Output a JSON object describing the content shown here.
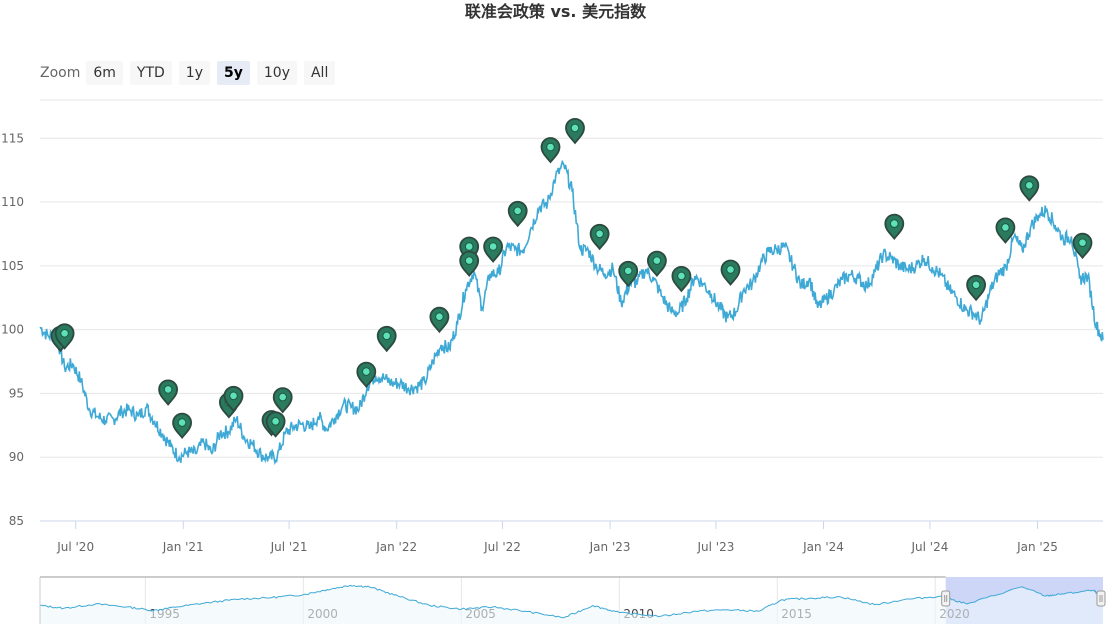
{
  "page_title": "联准会政策 vs. 美元指数",
  "zoom": {
    "label": "Zoom",
    "buttons": [
      {
        "label": "6m",
        "active": false
      },
      {
        "label": "YTD",
        "active": false
      },
      {
        "label": "1y",
        "active": false
      },
      {
        "label": "5y",
        "active": true
      },
      {
        "label": "10y",
        "active": false
      },
      {
        "label": "All",
        "active": false
      }
    ]
  },
  "colors": {
    "line": "#3fa9d6",
    "marker_fill": "#2a7a5e",
    "marker_stroke": "#2d4a40",
    "marker_dot": "#5ee0b8",
    "navigator_mask": "#c9d2f7",
    "navigator_area": "#eef7fb",
    "grid": "#e6e6e6"
  },
  "chart_data": {
    "type": "line",
    "title": "联准会政策 vs. 美元指数",
    "x_range": [
      "2020-05-01",
      "2025-04-23"
    ],
    "ylim": [
      85,
      118
    ],
    "y_ticks": [
      85,
      90,
      95,
      100,
      105,
      110,
      115
    ],
    "x_ticks": [
      {
        "date": "2020-07-01",
        "label": "Jul '20"
      },
      {
        "date": "2021-01-01",
        "label": "Jan '21"
      },
      {
        "date": "2021-07-01",
        "label": "Jul '21"
      },
      {
        "date": "2022-01-01",
        "label": "Jan '22"
      },
      {
        "date": "2022-07-01",
        "label": "Jul '22"
      },
      {
        "date": "2023-01-01",
        "label": "Jan '23"
      },
      {
        "date": "2023-07-01",
        "label": "Jul '23"
      },
      {
        "date": "2024-01-01",
        "label": "Jan '24"
      },
      {
        "date": "2024-07-01",
        "label": "Jul '24"
      },
      {
        "date": "2025-01-01",
        "label": "Jan '25"
      }
    ],
    "series": [
      {
        "x": [
          "2020-05-01",
          "2020-05-15",
          "2020-05-29",
          "2020-06-12",
          "2020-06-26",
          "2020-07-10",
          "2020-07-24",
          "2020-08-07",
          "2020-08-21",
          "2020-09-04",
          "2020-09-18",
          "2020-10-02",
          "2020-10-16",
          "2020-10-30",
          "2020-11-13",
          "2020-11-27",
          "2020-12-11",
          "2020-12-25",
          "2021-01-08",
          "2021-01-22",
          "2021-02-05",
          "2021-02-19",
          "2021-03-05",
          "2021-03-19",
          "2021-04-02",
          "2021-04-16",
          "2021-04-30",
          "2021-05-14",
          "2021-05-28",
          "2021-06-11",
          "2021-06-25",
          "2021-07-09",
          "2021-07-23",
          "2021-08-06",
          "2021-08-20",
          "2021-09-03",
          "2021-09-17",
          "2021-10-01",
          "2021-10-15",
          "2021-10-29",
          "2021-11-12",
          "2021-11-26",
          "2021-12-10",
          "2021-12-24",
          "2022-01-07",
          "2022-01-21",
          "2022-02-04",
          "2022-02-18",
          "2022-03-04",
          "2022-03-18",
          "2022-04-01",
          "2022-04-15",
          "2022-04-29",
          "2022-05-13",
          "2022-05-27",
          "2022-06-10",
          "2022-06-24",
          "2022-07-08",
          "2022-07-22",
          "2022-08-05",
          "2022-08-19",
          "2022-09-02",
          "2022-09-16",
          "2022-09-30",
          "2022-10-14",
          "2022-10-28",
          "2022-11-11",
          "2022-11-25",
          "2022-12-09",
          "2022-12-23",
          "2023-01-06",
          "2023-01-20",
          "2023-02-03",
          "2023-02-17",
          "2023-03-03",
          "2023-03-17",
          "2023-03-31",
          "2023-04-14",
          "2023-04-28",
          "2023-05-12",
          "2023-05-26",
          "2023-06-09",
          "2023-06-23",
          "2023-07-07",
          "2023-07-21",
          "2023-08-04",
          "2023-08-18",
          "2023-09-01",
          "2023-09-15",
          "2023-09-29",
          "2023-10-13",
          "2023-10-27",
          "2023-11-10",
          "2023-11-24",
          "2023-12-08",
          "2023-12-22",
          "2024-01-05",
          "2024-01-19",
          "2024-02-02",
          "2024-02-16",
          "2024-03-01",
          "2024-03-15",
          "2024-03-29",
          "2024-04-12",
          "2024-04-26",
          "2024-05-10",
          "2024-05-24",
          "2024-06-07",
          "2024-06-21",
          "2024-07-05",
          "2024-07-19",
          "2024-08-02",
          "2024-08-16",
          "2024-08-30",
          "2024-09-13",
          "2024-09-27",
          "2024-10-11",
          "2024-10-25",
          "2024-11-08",
          "2024-11-22",
          "2024-12-06",
          "2024-12-20",
          "2025-01-03",
          "2025-01-17",
          "2025-01-31",
          "2025-02-14",
          "2025-02-28",
          "2025-03-14",
          "2025-03-28",
          "2025-04-11",
          "2025-04-23"
        ],
        "y": [
          100.2,
          99.5,
          99.6,
          97.0,
          97.3,
          96.0,
          93.8,
          93.2,
          92.9,
          93.0,
          93.6,
          93.7,
          93.2,
          93.9,
          92.8,
          91.8,
          90.8,
          90.0,
          90.4,
          90.3,
          91.2,
          90.3,
          91.9,
          92.0,
          93.0,
          91.5,
          91.0,
          90.2,
          89.9,
          90.1,
          91.9,
          92.4,
          92.6,
          92.3,
          93.2,
          92.2,
          93.1,
          94.1,
          93.9,
          93.8,
          95.6,
          96.4,
          96.2,
          95.8,
          95.8,
          95.4,
          95.5,
          95.9,
          97.5,
          98.8,
          98.5,
          100.5,
          103.2,
          104.6,
          101.7,
          104.4,
          104.4,
          106.5,
          106.3,
          106.2,
          108.0,
          109.6,
          109.9,
          112.0,
          112.9,
          110.9,
          106.3,
          106.2,
          104.9,
          104.4,
          104.8,
          102.1,
          103.5,
          103.8,
          104.7,
          103.9,
          102.6,
          101.5,
          101.3,
          102.5,
          104.2,
          103.6,
          102.8,
          101.7,
          100.9,
          101.4,
          103.2,
          103.6,
          105.1,
          106.1,
          106.3,
          106.5,
          105.0,
          103.4,
          104.0,
          101.7,
          102.4,
          103.1,
          103.9,
          104.3,
          104.0,
          103.4,
          104.5,
          105.9,
          105.6,
          105.0,
          104.7,
          105.0,
          105.6,
          104.9,
          104.3,
          103.2,
          102.5,
          101.6,
          101.3,
          100.7,
          102.9,
          104.3,
          104.9,
          107.3,
          106.2,
          108.0,
          109.0,
          109.4,
          108.2,
          107.1,
          107.3,
          104.0,
          104.2,
          100.4,
          99.2
        ]
      }
    ],
    "flags": [
      {
        "date": "2020-06-05",
        "value": 99.2
      },
      {
        "date": "2020-06-12",
        "value": 99.4
      },
      {
        "date": "2020-12-06",
        "value": 95.0
      },
      {
        "date": "2020-12-30",
        "value": 92.4
      },
      {
        "date": "2021-03-20",
        "value": 94.0
      },
      {
        "date": "2021-03-28",
        "value": 94.5
      },
      {
        "date": "2021-06-01",
        "value": 92.6
      },
      {
        "date": "2021-06-08",
        "value": 92.5
      },
      {
        "date": "2021-06-20",
        "value": 94.4
      },
      {
        "date": "2021-11-10",
        "value": 96.4
      },
      {
        "date": "2021-12-15",
        "value": 99.2
      },
      {
        "date": "2022-03-15",
        "value": 100.7
      },
      {
        "date": "2022-05-05",
        "value": 106.2
      },
      {
        "date": "2022-05-05",
        "value": 105.1
      },
      {
        "date": "2022-06-15",
        "value": 106.2
      },
      {
        "date": "2022-07-27",
        "value": 109.0
      },
      {
        "date": "2022-09-21",
        "value": 114.0
      },
      {
        "date": "2022-11-02",
        "value": 115.5
      },
      {
        "date": "2022-12-14",
        "value": 107.2
      },
      {
        "date": "2023-02-01",
        "value": 104.3
      },
      {
        "date": "2023-03-22",
        "value": 105.1
      },
      {
        "date": "2023-05-03",
        "value": 103.9
      },
      {
        "date": "2023-07-26",
        "value": 104.4
      },
      {
        "date": "2024-05-01",
        "value": 108.0
      },
      {
        "date": "2024-09-18",
        "value": 103.2
      },
      {
        "date": "2024-11-07",
        "value": 107.7
      },
      {
        "date": "2024-12-18",
        "value": 111.0
      },
      {
        "date": "2025-03-19",
        "value": 106.5
      }
    ]
  },
  "navigator": {
    "ticks": [
      {
        "date": "1995-01-01",
        "label": "1995"
      },
      {
        "date": "2000-01-01",
        "label": "2000"
      },
      {
        "date": "2005-01-01",
        "label": "2005"
      },
      {
        "date": "2010-01-01",
        "label": "2010"
      },
      {
        "date": "2015-01-01",
        "label": "2015"
      },
      {
        "date": "2020-01-01",
        "label": "2020"
      }
    ],
    "x_range": [
      "1991-09-01",
      "2025-04-23"
    ],
    "selection": [
      "2020-05-01",
      "2025-04-23"
    ],
    "series": {
      "x": [
        "1991-09-01",
        "1992-06-01",
        "1993-06-01",
        "1994-06-01",
        "1995-04-01",
        "1996-01-01",
        "1997-01-01",
        "1998-01-01",
        "1999-01-01",
        "2000-01-01",
        "2000-10-01",
        "2001-07-01",
        "2002-02-01",
        "2003-01-01",
        "2004-01-01",
        "2005-01-01",
        "2006-01-01",
        "2007-01-01",
        "2008-04-01",
        "2009-03-01",
        "2010-01-01",
        "2011-05-01",
        "2012-06-01",
        "2013-06-01",
        "2014-06-01",
        "2015-03-01",
        "2016-01-01",
        "2017-01-01",
        "2018-02-01",
        "2019-01-01",
        "2020-03-01",
        "2021-01-01",
        "2022-10-01",
        "2023-07-01",
        "2024-01-01",
        "2025-01-01",
        "2025-04-23"
      ],
      "y": [
        88,
        84,
        90,
        86,
        81,
        86,
        92,
        97,
        99,
        103,
        110,
        116,
        114,
        101,
        88,
        83,
        86,
        80,
        71,
        88,
        78,
        73,
        80,
        82,
        80,
        96,
        98,
        100,
        89,
        96,
        101,
        90,
        114,
        101,
        104,
        109,
        99
      ]
    }
  }
}
